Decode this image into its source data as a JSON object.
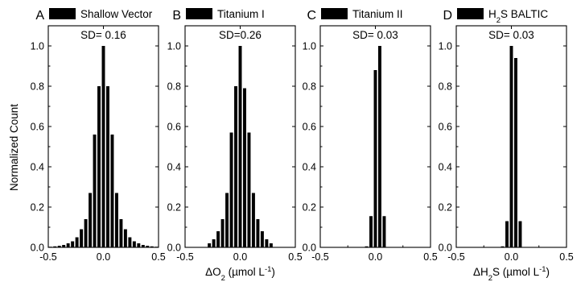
{
  "figure": {
    "ylabel": "Normalized Count"
  },
  "chart_data": [
    {
      "type": "bar",
      "panel_letter": "A",
      "legend": "Shallow Vector",
      "annotation": "SD= 0.16",
      "xlabel": "",
      "xlim": [
        -0.5,
        0.5
      ],
      "ylim": [
        0,
        1.1
      ],
      "xticks": [
        "-0.5",
        "0.0",
        "0.5"
      ],
      "yticks": [
        "0.0",
        "0.2",
        "0.4",
        "0.6",
        "0.8",
        "1.0"
      ],
      "bar_color": "#000000",
      "bin_width": 0.04,
      "x": [
        -0.48,
        -0.44,
        -0.4,
        -0.36,
        -0.32,
        -0.28,
        -0.24,
        -0.2,
        -0.16,
        -0.12,
        -0.08,
        -0.04,
        0.0,
        0.04,
        0.08,
        0.12,
        0.16,
        0.2,
        0.24,
        0.28,
        0.32,
        0.36,
        0.4,
        0.44,
        0.48
      ],
      "values": [
        0.003,
        0.005,
        0.008,
        0.012,
        0.02,
        0.03,
        0.05,
        0.09,
        0.14,
        0.27,
        0.56,
        0.8,
        1.0,
        0.8,
        0.56,
        0.27,
        0.14,
        0.09,
        0.05,
        0.03,
        0.02,
        0.012,
        0.008,
        0.005,
        0.003
      ]
    },
    {
      "type": "bar",
      "panel_letter": "B",
      "legend": "Titanium I",
      "annotation": "SD=0.26",
      "xlabel_parts": [
        "ΔO",
        "2",
        " (µmol L",
        "-1",
        ")"
      ],
      "xlim": [
        -0.5,
        0.5
      ],
      "ylim": [
        0,
        1.1
      ],
      "xticks": [
        "-0.5",
        "0.0",
        "0.5"
      ],
      "yticks": [
        "0.0",
        "0.2",
        "0.4",
        "0.6",
        "0.8",
        "1.0"
      ],
      "bar_color": "#000000",
      "bin_width": 0.04,
      "x": [
        -0.28,
        -0.24,
        -0.2,
        -0.16,
        -0.12,
        -0.08,
        -0.04,
        0.0,
        0.04,
        0.08,
        0.12,
        0.16,
        0.2,
        0.24,
        0.28
      ],
      "values": [
        0.02,
        0.04,
        0.08,
        0.14,
        0.27,
        0.57,
        0.8,
        1.0,
        0.79,
        0.57,
        0.27,
        0.14,
        0.08,
        0.04,
        0.02
      ]
    },
    {
      "type": "bar",
      "panel_letter": "C",
      "legend": "Titanium II",
      "annotation": "SD= 0.03",
      "xlabel": "",
      "xlim": [
        -0.5,
        0.5
      ],
      "ylim": [
        0,
        1.1
      ],
      "xticks": [
        "-0.5",
        "0.0",
        "0.5"
      ],
      "yticks": [
        "0.0",
        "0.2",
        "0.4",
        "0.6",
        "0.8",
        "1.0"
      ],
      "bar_color": "#000000",
      "bin_width": 0.04,
      "x": [
        -0.08,
        -0.04,
        0.0,
        0.04,
        0.08
      ],
      "values": [
        0.005,
        0.155,
        0.88,
        1.0,
        0.155
      ]
    },
    {
      "type": "bar",
      "panel_letter": "D",
      "legend_parts": [
        "H",
        "2",
        "S BALTIC"
      ],
      "annotation": "SD= 0.03",
      "xlabel_parts": [
        "ΔH",
        "2",
        "S (µmol L",
        "-1",
        ")"
      ],
      "xlim": [
        -0.5,
        0.5
      ],
      "ylim": [
        0,
        1.1
      ],
      "xticks": [
        "-0.5",
        "0.0",
        "0.5"
      ],
      "yticks": [
        "0.0",
        "0.2",
        "0.4",
        "0.6",
        "0.8",
        "1.0"
      ],
      "bar_color": "#000000",
      "bin_width": 0.04,
      "x": [
        -0.08,
        -0.04,
        0.0,
        0.04,
        0.08
      ],
      "values": [
        0.005,
        0.13,
        1.0,
        0.94,
        0.13
      ]
    }
  ]
}
